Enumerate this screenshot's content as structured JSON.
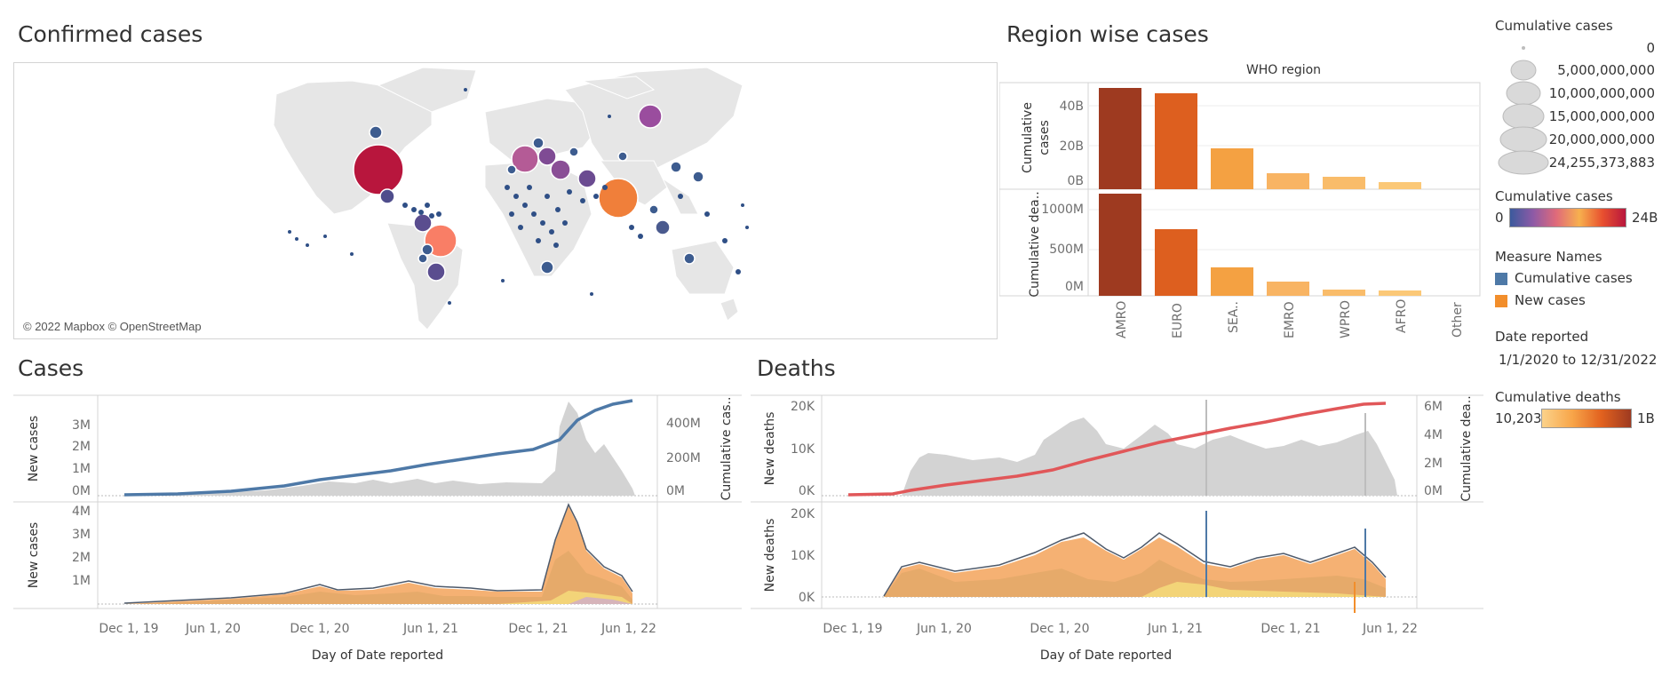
{
  "map": {
    "title": "Confirmed cases",
    "attribution": "© 2022 Mapbox © OpenStreetMap"
  },
  "region": {
    "title": "Region wise cases",
    "column_header": "WHO region",
    "row1_label": "Cumulative cases",
    "row2_label": "Cumulative dea..",
    "categories": [
      "AMRO",
      "EURO",
      "SEA..",
      "EMRO",
      "WPRO",
      "AFRO",
      "Other"
    ],
    "y1_ticks": [
      "40B",
      "20B",
      "0B"
    ],
    "y2_ticks": [
      "1000M",
      "500M",
      "0M"
    ],
    "colors": [
      "#9e3a20",
      "#dd5f1f",
      "#f4a142",
      "#f8b463",
      "#f9bc6a",
      "#fbc877",
      "#ffffff"
    ]
  },
  "cases": {
    "title": "Cases",
    "y_left_top": "New cases",
    "y_right_top": "Cumulative cas..",
    "y_left_bottom": "New cases",
    "top_left_ticks": [
      "3M",
      "2M",
      "1M",
      "0M"
    ],
    "top_right_ticks": [
      "400M",
      "200M",
      "0M"
    ],
    "bottom_ticks": [
      "4M",
      "3M",
      "2M",
      "1M"
    ],
    "x_ticks": [
      "Dec 1, 19",
      "Jun 1, 20",
      "Dec 1, 20",
      "Jun 1, 21",
      "Dec 1, 21",
      "Jun 1, 22"
    ],
    "x_title": "Day of Date reported"
  },
  "deaths": {
    "title": "Deaths",
    "y_left_top": "New deaths",
    "y_right_top": "Cumulative dea..",
    "y_left_bottom": "New deaths",
    "top_left_ticks": [
      "20K",
      "10K",
      "0K"
    ],
    "top_right_ticks": [
      "6M",
      "4M",
      "2M",
      "0M"
    ],
    "bottom_ticks": [
      "20K",
      "10K",
      "0K"
    ],
    "x_ticks": [
      "Dec 1, 19",
      "Jun 1, 20",
      "Dec 1, 20",
      "Jun 1, 21",
      "Dec 1, 21",
      "Jun 1, 22"
    ],
    "x_title": "Day of Date reported"
  },
  "legends": {
    "size_title": "Cumulative cases",
    "size_labels": [
      "0",
      "5,000,000,000",
      "10,000,000,000",
      "15,000,000,000",
      "20,000,000,000",
      "24,255,373,883"
    ],
    "color_title": "Cumulative cases",
    "color_min": "0",
    "color_max": "24B",
    "measure_title": "Measure Names",
    "measure_items": [
      {
        "label": "Cumulative cases",
        "color": "#4e79a7"
      },
      {
        "label": "New cases",
        "color": "#f28e2b"
      }
    ],
    "date_title": "Date reported",
    "date_range": "1/1/2020 to 12/31/2022",
    "deaths_title": "Cumulative deaths",
    "deaths_min": "10,203",
    "deaths_max": "1B"
  }
}
